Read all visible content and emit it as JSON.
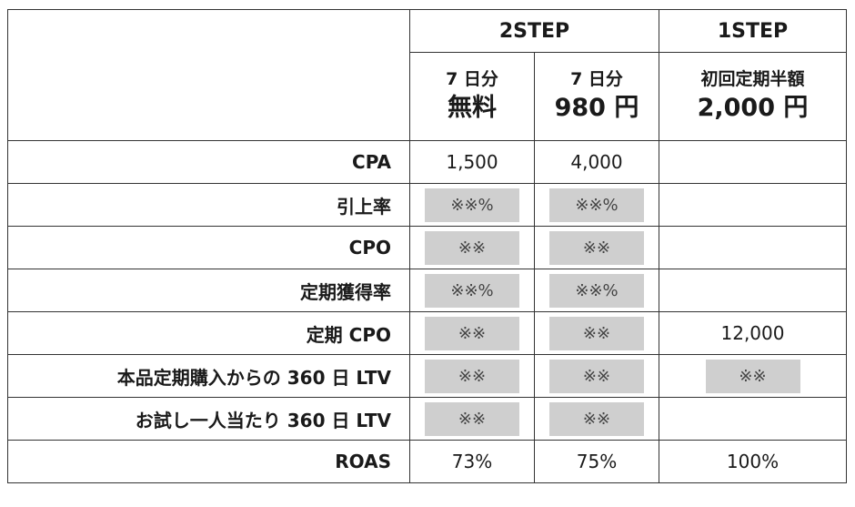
{
  "header": {
    "group_2step": "2STEP",
    "group_1step": "1STEP",
    "col1": {
      "line1": "7 日分",
      "line2": "無料"
    },
    "col2": {
      "line1": "7 日分",
      "line2": "980 円"
    },
    "col3": {
      "line1": "初回定期半額",
      "line2": "2,000 円"
    }
  },
  "rows": [
    {
      "label": "CPA",
      "v1": "1,500",
      "v2": "4,000",
      "v3": ""
    },
    {
      "label": "引上率",
      "v1": "※※%",
      "v2": "※※%",
      "v3": ""
    },
    {
      "label": "CPO",
      "v1": "※※",
      "v2": "※※",
      "v3": ""
    },
    {
      "label": "定期獲得率",
      "v1": "※※%",
      "v2": "※※%",
      "v3": ""
    },
    {
      "label": "定期 CPO",
      "v1": "※※",
      "v2": "※※",
      "v3": "12,000"
    },
    {
      "label": "本品定期購入からの 360 日 LTV",
      "v1": "※※",
      "v2": "※※",
      "v3": "※※"
    },
    {
      "label": "お試し一人当たり 360 日 LTV",
      "v1": "※※",
      "v2": "※※",
      "v3": ""
    },
    {
      "label": "ROAS",
      "v1": "73%",
      "v2": "75%",
      "v3": "100%"
    }
  ],
  "colors": {
    "border": "#333333",
    "masked_cell": "#cfcfcf"
  }
}
